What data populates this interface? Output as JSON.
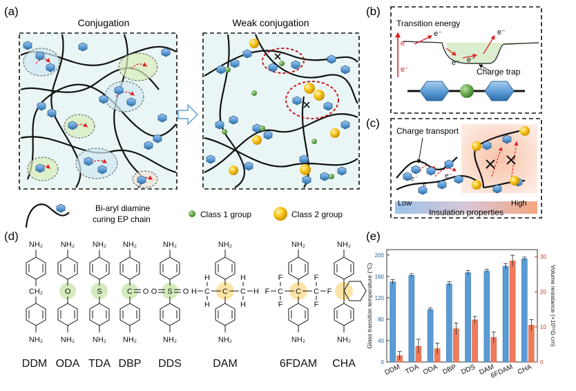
{
  "panels": {
    "a": {
      "label": "(a)",
      "left_title": "Conjugation",
      "right_title": "Weak conjugation",
      "legend": {
        "chain_line1": "Bi-aryl diamine",
        "chain_line2": "curing EP chain",
        "class1": "Class 1 group",
        "class2": "Class 2 group"
      }
    },
    "b": {
      "label": "(b)",
      "title": "Transition energy",
      "electron": "e⁻",
      "trap": "Charge trap"
    },
    "c": {
      "label": "(c)",
      "title": "Charge transport",
      "electron": "e⁻",
      "low": "Low",
      "high": "High",
      "bar_label": "Insulation properties"
    },
    "d": {
      "label": "(d)",
      "amine": "NH₂",
      "ch2": "CH₂",
      "o": "O",
      "s": "S",
      "c": "C",
      "h": "H",
      "f": "F",
      "names": [
        "DDM",
        "ODA",
        "TDA",
        "DBP",
        "DDS",
        "DAM",
        "6FDAM",
        "CHA"
      ]
    },
    "e": {
      "label": "(e)"
    }
  },
  "colors": {
    "ring_blue": "#5b9bd5",
    "class1_green": "#4e9a2f",
    "class2_yellow": "#f2b705",
    "bar_blue": "#5b9bd5",
    "bar_red": "#f07a5c",
    "axis_red": "#c0392b"
  },
  "chart_data": {
    "type": "bar",
    "categories": [
      "DDM",
      "TDA",
      "ODA",
      "DBP",
      "DDS",
      "DAM",
      "6FDAM",
      "CHA"
    ],
    "ylabel": "Glass transition temperature (°C)",
    "y2label": "Volume resistance (×10¹⁶Ω·cm)",
    "ylim": [
      0,
      210
    ],
    "y2lim": [
      0,
      32
    ],
    "yticks": [
      0,
      40,
      80,
      120,
      160,
      200
    ],
    "y2ticks": [
      0,
      10,
      20,
      30
    ],
    "series": [
      {
        "name": "Glass transition temperature",
        "axis": "left",
        "values": [
          150,
          162,
          98,
          146,
          167,
          170,
          179,
          193
        ],
        "errors": [
          4,
          3,
          3,
          4,
          4,
          3,
          5,
          3
        ]
      },
      {
        "name": "Volume resistance",
        "axis": "right",
        "values": [
          1.8,
          4.5,
          3.8,
          9.5,
          12.0,
          7.0,
          28.8,
          10.5
        ],
        "errors": [
          1.2,
          2.0,
          1.6,
          1.6,
          1.0,
          1.6,
          1.6,
          1.6
        ]
      }
    ]
  }
}
